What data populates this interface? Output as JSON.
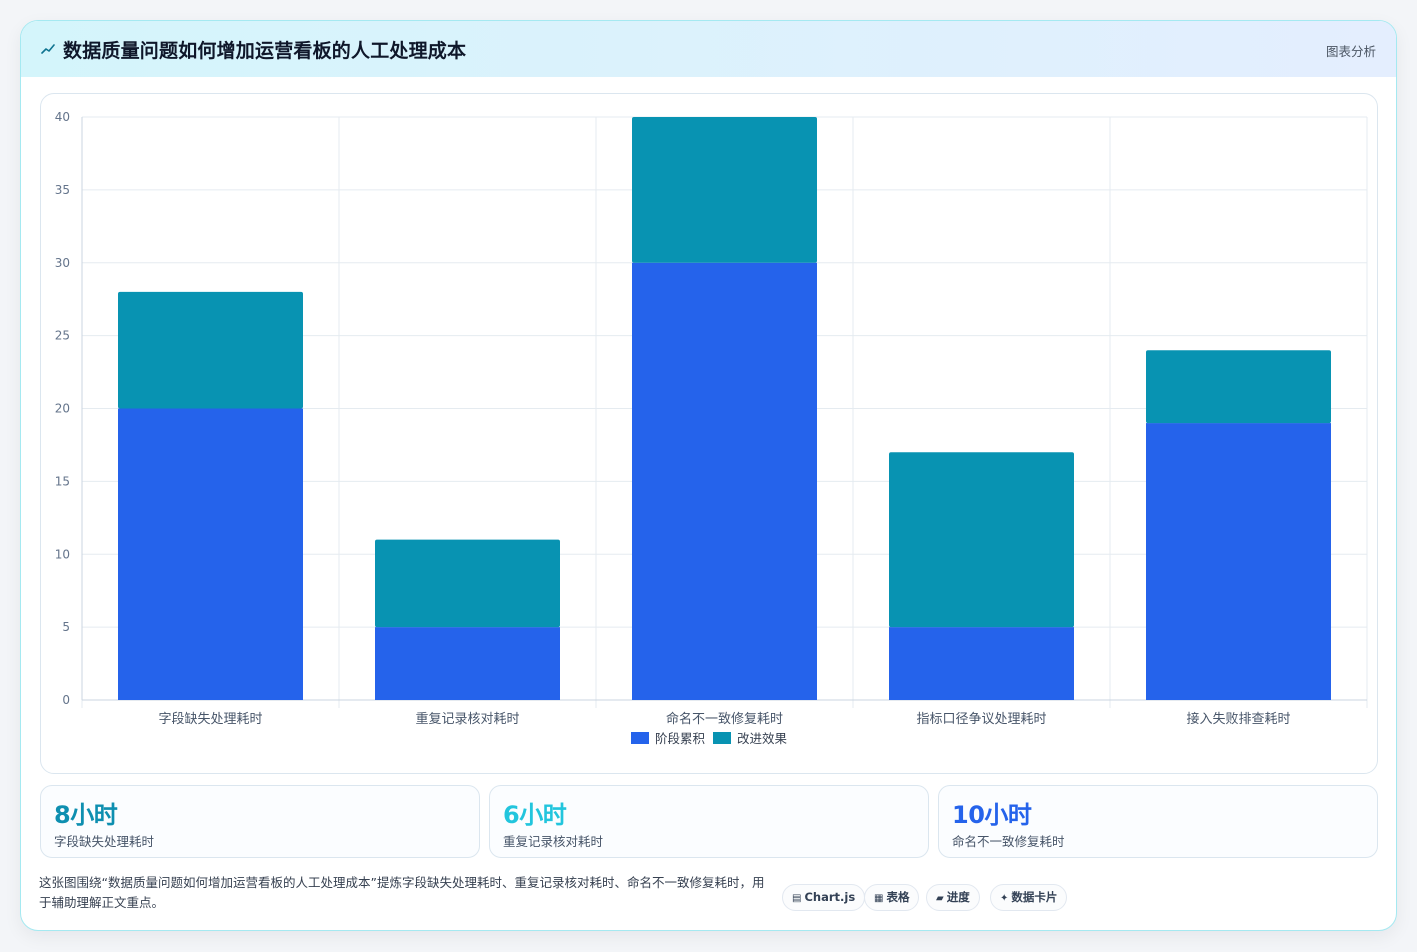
{
  "header": {
    "icon": "chart-line-icon",
    "title": "数据质量问题如何增加运营看板的人工处理成本",
    "tag": "图表分析"
  },
  "colors": {
    "series1": "#2563eb",
    "series2": "#0893b2",
    "stat1": "#0e8fb0",
    "stat2": "#22c5dd",
    "stat3": "#2563eb",
    "grid": "#e5ebf0"
  },
  "chart_data": {
    "type": "bar",
    "stacked": true,
    "categories": [
      "字段缺失处理耗时",
      "重复记录核对耗时",
      "命名不一致修复耗时",
      "指标口径争议处理耗时",
      "接入失败排查耗时"
    ],
    "series": [
      {
        "name": "阶段累积",
        "values": [
          20,
          5,
          30,
          5,
          19
        ]
      },
      {
        "name": "改进效果",
        "values": [
          8,
          6,
          10,
          12,
          5
        ]
      }
    ],
    "ylim": [
      0,
      40
    ],
    "yticks": [
      0,
      5,
      10,
      15,
      20,
      25,
      30,
      35,
      40
    ],
    "grid": true,
    "legend_position": "bottom"
  },
  "stats": [
    {
      "value": "8小时",
      "label": "字段缺失处理耗时"
    },
    {
      "value": "6小时",
      "label": "重复记录核对耗时"
    },
    {
      "value": "10小时",
      "label": "命名不一致修复耗时"
    }
  ],
  "description": "这张图围绕“数据质量问题如何增加运营看板的人工处理成本”提炼字段缺失处理耗时、重复记录核对耗时、命名不一致修复耗时，用于辅助理解正文重点。",
  "chips": [
    {
      "icon": "▤",
      "icon_name": "chart-icon",
      "label": "Chart.js"
    },
    {
      "icon": "▦",
      "icon_name": "table-icon",
      "label": "表格"
    },
    {
      "icon": "▰",
      "icon_name": "progress-icon",
      "label": "进度"
    },
    {
      "icon": "✦",
      "icon_name": "sparkle-icon",
      "label": "数据卡片"
    }
  ]
}
